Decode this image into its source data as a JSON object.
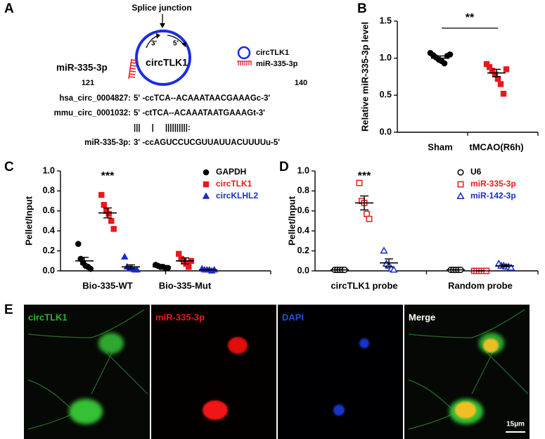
{
  "panel_labels": [
    "A",
    "B",
    "C",
    "D",
    "E"
  ],
  "diagram": {
    "splice_label": "Splice junction",
    "circ_label": "circTLK1",
    "mir_label": "miR-335-3p",
    "strand_left": "3'",
    "strand_right": "5'",
    "legend": [
      "circTLK1",
      "miR-335-3p"
    ],
    "pos_start": 121,
    "pos_end": 140,
    "alignment": [
      {
        "name": "hsa_circ_0004827:",
        "seq": "5' -ccTCA--ACAAATAACGAAAGc-3'"
      },
      {
        "name": "mmu_circ_0001032:",
        "seq": "5' -ctTCA--ACAAATAATGAAAGt-3'"
      },
      {
        "name": "",
        "seq": "|||     |     ||||||||||:"
      },
      {
        "name": "miR-335-3p:",
        "seq": "3' -ccAGUCCUCGUUAUUACUUUUu-5'"
      }
    ]
  },
  "chart_data": [
    {
      "type": "dot",
      "y_label": "Relative miR-335-3p level",
      "categories": [
        "Sham",
        "tMCAO(R6h)"
      ],
      "series": [
        {
          "colors": [
            "#000000",
            "#e8191c"
          ],
          "markers": [
            "circle",
            "square"
          ],
          "values": [
            [
              1.07,
              1.04,
              1.01,
              0.98,
              0.96,
              0.93,
              1.03,
              1.05
            ],
            [
              0.92,
              0.88,
              0.83,
              0.78,
              0.72,
              0.65,
              0.52,
              0.85
            ]
          ],
          "mean": [
            1.0,
            0.8
          ],
          "sem": [
            0.03,
            0.05
          ]
        }
      ],
      "ylim": [
        0,
        1.5
      ],
      "yticks": [
        {
          "value": 0,
          "label": "0.0"
        },
        {
          "value": 0.5,
          "label": "0.5"
        },
        {
          "value": 1,
          "label": "1.0"
        },
        {
          "value": 1.5,
          "label": "1.5"
        }
      ],
      "significance": "**"
    },
    {
      "type": "dot",
      "y_label": "Pellet/Input",
      "categories": [
        "Bio-335-WT",
        "Bio-335-Mut"
      ],
      "series": [
        {
          "name": "GAPDH",
          "color": "#000000",
          "marker": "circle",
          "values": [
            [
              0.27,
              0.12,
              0.08,
              0.05,
              0.04,
              0.02
            ],
            [
              0.06,
              0.05,
              0.04,
              0.04,
              0.03,
              0.03
            ]
          ],
          "mean": [
            0.1,
            0.04
          ],
          "sem": [
            0.035,
            0.006
          ]
        },
        {
          "name": "circTLK1",
          "color": "#e8191c",
          "marker": "square",
          "values": [
            [
              0.76,
              0.66,
              0.6,
              0.57,
              0.5,
              0.42
            ],
            [
              0.17,
              0.12,
              0.1,
              0.07,
              0.04,
              0.1
            ]
          ],
          "mean": [
            0.58,
            0.1
          ],
          "sem": [
            0.05,
            0.03
          ]
        },
        {
          "name": "circKLHL2",
          "color": "#1a2dc8",
          "marker": "triangle",
          "values": [
            [
              0.14,
              0.04,
              0.02,
              0.02,
              0.01,
              0.01
            ],
            [
              0.02,
              0.01,
              0.01,
              0.01,
              0.0,
              0.01
            ]
          ],
          "mean": [
            0.04,
            0.01
          ],
          "sem": [
            0.02,
            0.003
          ]
        }
      ],
      "ylim": [
        0,
        1
      ],
      "yticks": [
        {
          "value": 0,
          "label": "0.0"
        },
        {
          "value": 0.2,
          "label": "0.2"
        },
        {
          "value": 0.4,
          "label": "0.4"
        },
        {
          "value": 0.6,
          "label": "0.6"
        },
        {
          "value": 0.8,
          "label": "0.8"
        },
        {
          "value": 1,
          "label": "1.0"
        }
      ],
      "legend": "upper right",
      "significance": "***"
    },
    {
      "type": "dot",
      "y_label": "Pellet/Input",
      "categories": [
        "circTLK1 probe",
        "Random probe"
      ],
      "series": [
        {
          "name": "U6",
          "color": "#000000",
          "marker": "open-circle",
          "values": [
            [
              0.01,
              0.01,
              0.01,
              0.01,
              0.01
            ],
            [
              0.01,
              0.01,
              0.01,
              0.01,
              0.01
            ]
          ],
          "mean": [
            0.01,
            0.01
          ],
          "sem": [
            0.002,
            0.002
          ]
        },
        {
          "name": "miR-335-3p",
          "color": "#e8191c",
          "marker": "open-square",
          "values": [
            [
              0.88,
              0.7,
              0.68,
              0.57,
              0.52
            ],
            [
              0.0,
              0.0,
              0.0,
              0.0,
              0.0,
              0.0
            ]
          ],
          "mean": [
            0.68,
            0.0
          ],
          "sem": [
            0.07,
            0.001
          ]
        },
        {
          "name": "miR-142-3p",
          "color": "#1a2dc8",
          "marker": "open-triangle",
          "values": [
            [
              0.2,
              0.07,
              0.05,
              0.02,
              0.01
            ],
            [
              0.07,
              0.05,
              0.05,
              0.04,
              0.04,
              0.03
            ]
          ],
          "mean": [
            0.08,
            0.05
          ],
          "sem": [
            0.04,
            0.01
          ]
        }
      ],
      "ylim": [
        0,
        1
      ],
      "yticks": [
        {
          "value": 0,
          "label": "0.0"
        },
        {
          "value": 0.2,
          "label": "0.2"
        },
        {
          "value": 0.4,
          "label": "0.4"
        },
        {
          "value": 0.6,
          "label": "0.6"
        },
        {
          "value": 0.8,
          "label": "0.8"
        },
        {
          "value": 1,
          "label": "1.0"
        }
      ],
      "legend": "upper right",
      "significance": "***"
    }
  ],
  "images": {
    "labels": [
      "circTLK1",
      "miR-335-3p",
      "DAPI",
      "Merge"
    ],
    "scale_bar": "15µm"
  }
}
